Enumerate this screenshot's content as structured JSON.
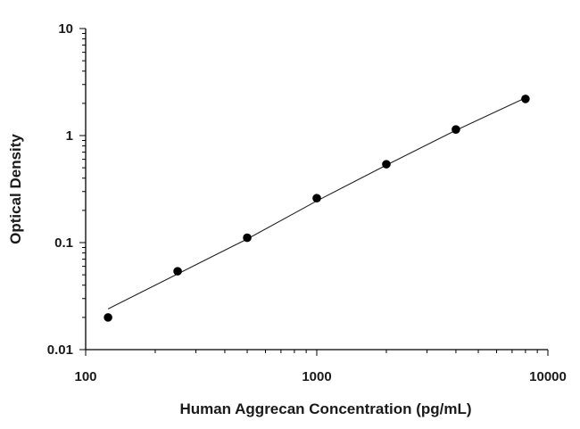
{
  "chart_data": {
    "type": "scatter",
    "title": "",
    "xlabel": "Human Aggrecan Concentration (pg/mL)",
    "ylabel": "Optical Density",
    "x_scale": "log",
    "y_scale": "log",
    "xlim": [
      100,
      10000
    ],
    "ylim": [
      0.01,
      10
    ],
    "x_ticks": [
      100,
      1000,
      10000
    ],
    "x_tick_labels": [
      "100",
      "1000",
      "10000"
    ],
    "y_ticks": [
      0.01,
      0.1,
      1,
      10
    ],
    "y_tick_labels": [
      "0.01",
      "0.1",
      "1",
      "10"
    ],
    "grid": false,
    "legend": "none",
    "series": [
      {
        "x": [
          125,
          250,
          500,
          1000,
          2000,
          4000,
          8000
        ],
        "y": [
          0.02,
          0.054,
          0.111,
          0.26,
          0.54,
          1.14,
          2.2
        ]
      }
    ],
    "fit_line": {
      "x": [
        125,
        250,
        500,
        1000,
        2000,
        4000,
        8000
      ],
      "y": [
        0.024,
        0.051,
        0.108,
        0.245,
        0.53,
        1.12,
        2.25
      ]
    },
    "colors": {
      "points": "#000000",
      "line": "#222222",
      "axes": "#000000"
    }
  }
}
